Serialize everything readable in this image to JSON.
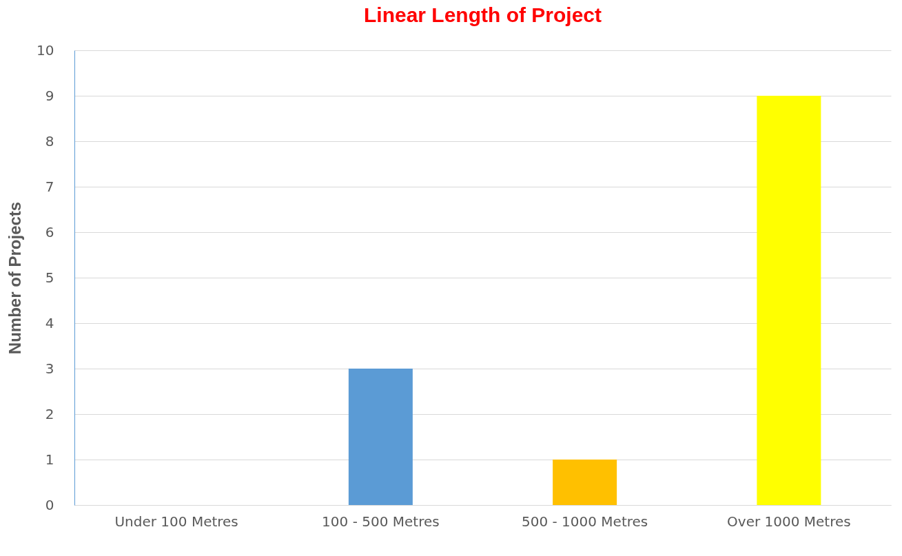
{
  "chart_data": {
    "type": "bar",
    "title": "Linear Length of Project",
    "ylabel": "Number of Projects",
    "categories": [
      "Under 100 Metres",
      "100 - 500 Metres",
      "500 - 1000 Metres",
      "Over 1000 Metres"
    ],
    "values": [
      0,
      3,
      1,
      9
    ],
    "colors": [
      "#5b9bd5",
      "#5b9bd5",
      "#ffc000",
      "#ffff00"
    ],
    "ylim": [
      0,
      10
    ],
    "yticks": [
      0,
      1,
      2,
      3,
      4,
      5,
      6,
      7,
      8,
      9,
      10
    ],
    "grid": "y"
  }
}
